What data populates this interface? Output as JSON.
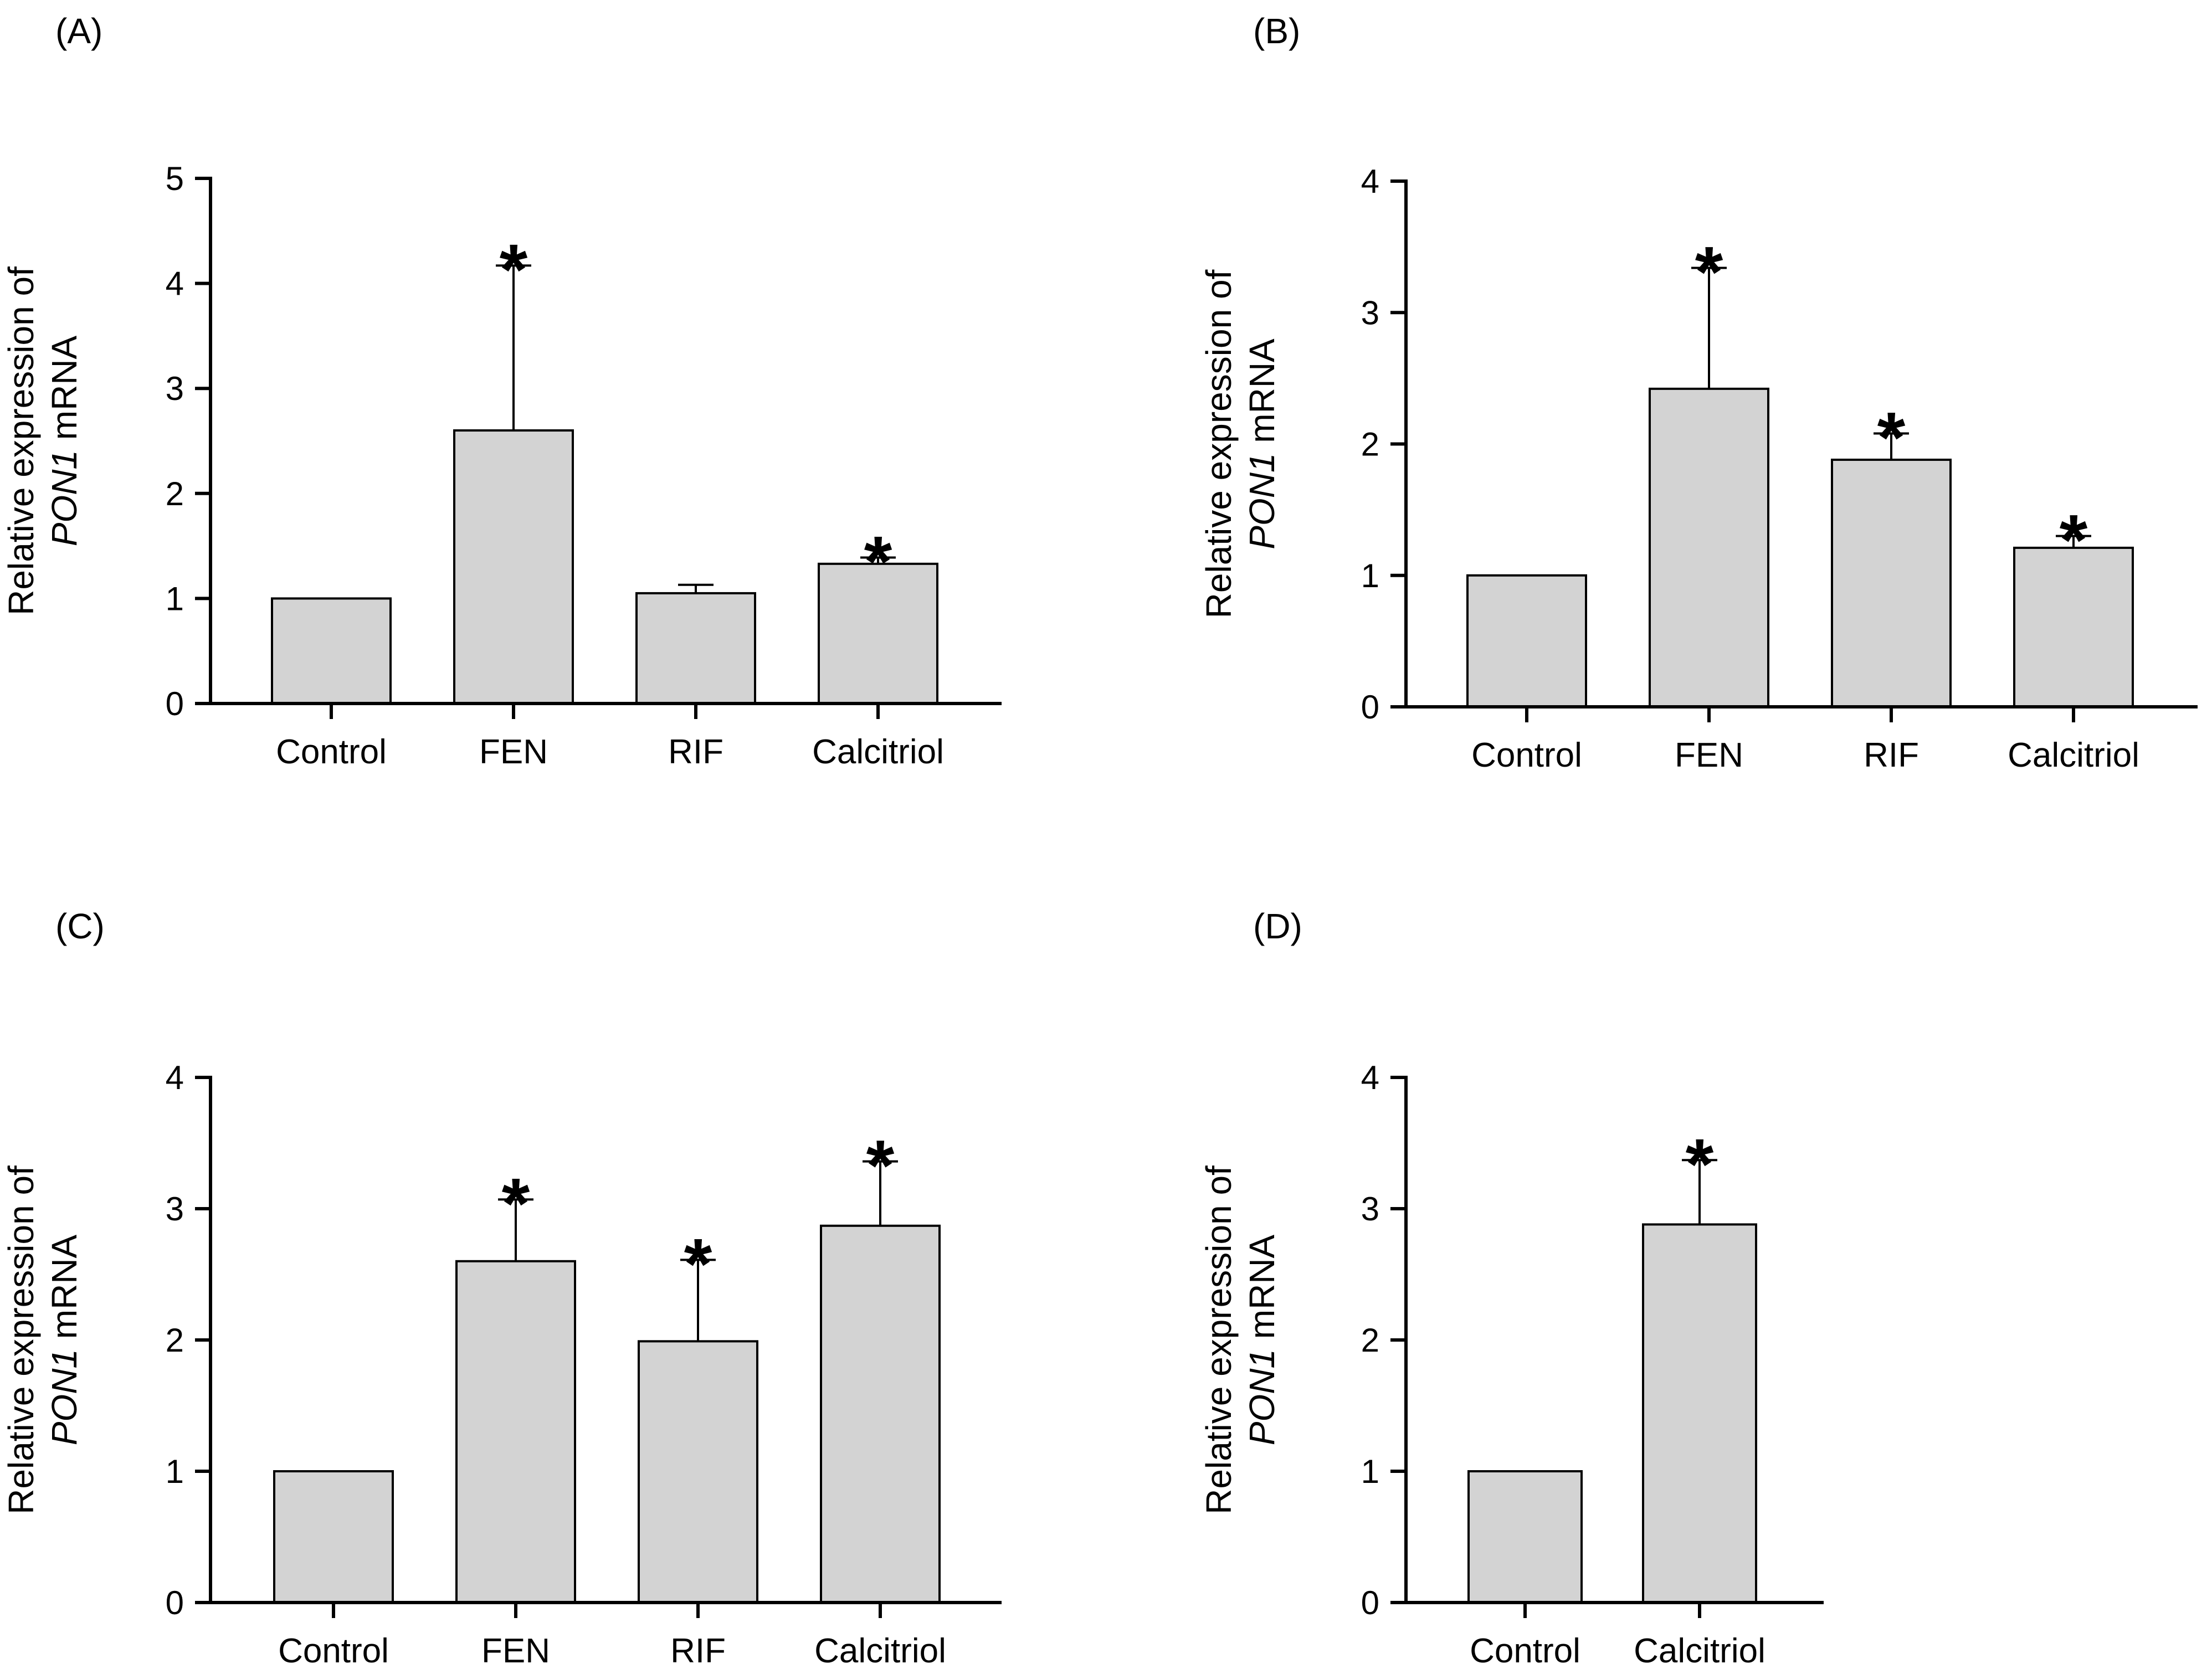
{
  "figure": {
    "ylabel_line1": "Relative expression of",
    "ylabel_gene": "PON1",
    "ylabel_suffix": " mRNA"
  },
  "colors": {
    "bar_fill": "#d3d3d3",
    "bar_stroke": "#000000",
    "axis": "#000000"
  },
  "chart_data": [
    {
      "panel": "(A)",
      "type": "bar",
      "categories": [
        "Control",
        "FEN",
        "RIF",
        "Calcitriol"
      ],
      "values": [
        1.0,
        2.6,
        1.05,
        1.33
      ],
      "errors": [
        0,
        1.57,
        0.08,
        0.06
      ],
      "significant": [
        false,
        true,
        false,
        true
      ],
      "ylim": [
        0,
        5
      ],
      "yticks": [
        "0",
        "1",
        "2",
        "3",
        "4",
        "5"
      ],
      "xlabel": "",
      "ylabel": "Relative expression of PON1 mRNA",
      "significance_marker": "*"
    },
    {
      "panel": "(B)",
      "type": "bar",
      "categories": [
        "Control",
        "FEN",
        "RIF",
        "Calcitriol"
      ],
      "values": [
        1.0,
        2.42,
        1.88,
        1.21
      ],
      "errors": [
        0,
        0.92,
        0.2,
        0.09
      ],
      "significant": [
        false,
        true,
        true,
        true
      ],
      "ylim": [
        0,
        4
      ],
      "yticks": [
        "0",
        "1",
        "2",
        "3",
        "4"
      ],
      "xlabel": "",
      "ylabel": "Relative expression of PON1 mRNA",
      "significance_marker": "*"
    },
    {
      "panel": "(C)",
      "type": "bar",
      "categories": [
        "Control",
        "FEN",
        "RIF",
        "Calcitriol"
      ],
      "values": [
        1.0,
        2.6,
        1.99,
        2.87
      ],
      "errors": [
        0,
        0.47,
        0.62,
        0.49
      ],
      "significant": [
        false,
        true,
        true,
        true
      ],
      "ylim": [
        0,
        4
      ],
      "yticks": [
        "0",
        "1",
        "2",
        "3",
        "4"
      ],
      "xlabel": "",
      "ylabel": "Relative expression of PON1 mRNA",
      "significance_marker": "*"
    },
    {
      "panel": "(D)",
      "type": "bar",
      "categories": [
        "Control",
        "Calcitriol"
      ],
      "values": [
        1.0,
        2.88
      ],
      "errors": [
        0,
        0.49
      ],
      "significant": [
        false,
        true
      ],
      "ylim": [
        0,
        4
      ],
      "yticks": [
        "0",
        "1",
        "2",
        "3",
        "4"
      ],
      "xlabel": "",
      "ylabel": "Relative expression of PON1 mRNA",
      "significance_marker": "*"
    }
  ]
}
